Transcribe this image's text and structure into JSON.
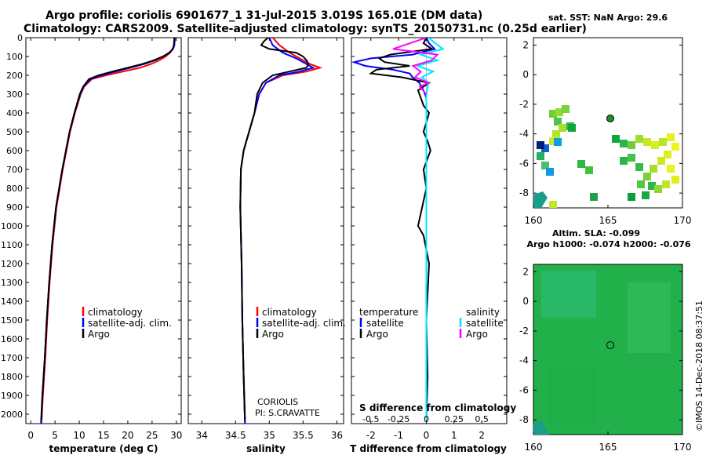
{
  "header": {
    "title_line1": "Argo profile: coriolis 6901677_1 31-Jul-2015 3.019S 165.01E (DM data)",
    "title_line2": "Climatology: CARS2009. Satellite-adjusted climatology: synTS_20150731.nc (0.25d earlier)"
  },
  "colors": {
    "climatology": "#ff0000",
    "satellite": "#0000ff",
    "argo": "#000000",
    "sat_salinity": "#00e5ff",
    "argo_salinity": "#ff00ff"
  },
  "maps": {
    "sst_title": "sat. SST: NaN Argo: 29.6",
    "sla_title_1": "Altim. SLA: -0.099",
    "sla_title_2": "Argo h1000: -0.074 h2000: -0.076",
    "location": [
      165.01,
      -3.019
    ],
    "x_ticks": [
      "160",
      "165",
      "170"
    ],
    "y_ticks": [
      "2",
      "0",
      "-2",
      "-4",
      "-6",
      "-8"
    ]
  },
  "footer": {
    "stamp": "©IMOS 14-Dec-2018 08:37:51",
    "credit_1": "CORIOLIS",
    "credit_2": "PI: S.CRAVATTE"
  },
  "chart_data": [
    {
      "type": "line",
      "panel": "temperature",
      "xlabel": "temperature (deg C)",
      "ylabel": "",
      "xlim": [
        -1,
        31
      ],
      "ylim": [
        2050,
        0
      ],
      "x_ticks": [
        0,
        5,
        10,
        15,
        20,
        25,
        30
      ],
      "y_ticks": [
        0,
        100,
        200,
        300,
        400,
        500,
        600,
        700,
        800,
        900,
        1000,
        1100,
        1200,
        1300,
        1400,
        1500,
        1600,
        1700,
        1800,
        1900,
        2000
      ],
      "legend": [
        "climatology",
        "satellite-adj. clim.",
        "Argo"
      ],
      "series": [
        {
          "name": "climatology",
          "depth": [
            0,
            40,
            60,
            80,
            100,
            120,
            140,
            160,
            180,
            200,
            220,
            260,
            300,
            400,
            500,
            700,
            900,
            1100,
            1300,
            1500,
            1700,
            1900,
            2050
          ],
          "values": [
            29.6,
            29.5,
            29.2,
            28.7,
            27.8,
            26.5,
            24.8,
            22.5,
            19.0,
            15.5,
            12.6,
            11.0,
            10.3,
            9.1,
            8.1,
            6.6,
            5.3,
            4.5,
            3.9,
            3.4,
            3.0,
            2.5,
            2.2
          ]
        },
        {
          "name": "satellite-adj. clim.",
          "depth": [
            0,
            40,
            60,
            80,
            100,
            120,
            140,
            160,
            180,
            200,
            220,
            260,
            300,
            400,
            500,
            700,
            900,
            1100,
            1300,
            1500,
            1700,
            1900,
            2050
          ],
          "values": [
            29.7,
            29.6,
            29.3,
            28.5,
            27.3,
            25.6,
            23.4,
            20.5,
            17.5,
            14.5,
            12.3,
            10.9,
            10.2,
            9.0,
            8.0,
            6.5,
            5.2,
            4.4,
            3.8,
            3.3,
            2.9,
            2.4,
            2.1
          ]
        },
        {
          "name": "Argo",
          "depth": [
            0,
            40,
            60,
            80,
            100,
            120,
            140,
            160,
            180,
            200,
            220,
            260,
            300,
            400,
            500,
            700,
            900,
            1100,
            1300,
            1500,
            1700,
            1900,
            2030
          ],
          "values": [
            29.6,
            29.5,
            29.3,
            28.6,
            27.2,
            25.4,
            23.0,
            20.0,
            16.8,
            14.0,
            12.0,
            10.8,
            10.1,
            9.0,
            8.0,
            6.5,
            5.2,
            4.4,
            3.8,
            3.3,
            2.9,
            2.4,
            2.2
          ]
        }
      ]
    },
    {
      "type": "line",
      "panel": "salinity",
      "xlabel": "salinity",
      "ylabel": "",
      "xlim": [
        33.8,
        36.1
      ],
      "ylim": [
        2050,
        0
      ],
      "x_ticks": [
        34,
        34.5,
        35,
        35.5,
        36
      ],
      "legend": [
        "climatology",
        "satellite-adj. clim.",
        "Argo"
      ],
      "series": [
        {
          "name": "climatology",
          "depth": [
            0,
            40,
            80,
            110,
            140,
            160,
            180,
            200,
            240,
            300,
            400,
            500,
            600,
            700,
            900,
            1200,
            1500,
            1800,
            2050
          ],
          "values": [
            35.05,
            35.15,
            35.3,
            35.45,
            35.6,
            35.75,
            35.55,
            35.2,
            34.95,
            34.85,
            34.78,
            34.7,
            34.62,
            34.58,
            34.57,
            34.59,
            34.6,
            34.62,
            34.64
          ]
        },
        {
          "name": "satellite-adj. clim.",
          "depth": [
            0,
            40,
            80,
            110,
            140,
            160,
            180,
            200,
            240,
            300,
            400,
            500,
            600,
            700,
            900,
            1200,
            1500,
            1800,
            2050
          ],
          "values": [
            35.0,
            35.05,
            35.2,
            35.4,
            35.55,
            35.65,
            35.45,
            35.15,
            34.95,
            34.85,
            34.78,
            34.7,
            34.62,
            34.58,
            34.57,
            34.59,
            34.6,
            34.62,
            34.64
          ]
        },
        {
          "name": "Argo",
          "depth": [
            0,
            20,
            40,
            60,
            80,
            100,
            120,
            140,
            160,
            180,
            200,
            240,
            300,
            400,
            500,
            600,
            700,
            900,
            1200,
            1500,
            1800,
            2030
          ],
          "values": [
            34.98,
            34.92,
            34.88,
            35.0,
            35.4,
            35.5,
            35.55,
            35.58,
            35.55,
            35.3,
            35.05,
            34.9,
            34.82,
            34.78,
            34.7,
            34.62,
            34.58,
            34.57,
            34.59,
            34.6,
            34.62,
            34.64
          ]
        }
      ]
    },
    {
      "type": "line",
      "panel": "differences",
      "xlabel": "T difference from climatology",
      "secondary_xlabel": "S difference from climatology",
      "xlim": [
        -2.7,
        2.9
      ],
      "ylim": [
        2050,
        0
      ],
      "x_ticks": [
        -2,
        -1,
        0,
        1,
        2
      ],
      "s_ticks": [
        "-0.5",
        "-0.25",
        "0",
        "0.25",
        "0.5"
      ],
      "legend_left_title": "temperature",
      "legend_right_title": "salinity",
      "legend": [
        "satellite",
        "Argo",
        "satellite",
        "Argo"
      ],
      "series": [
        {
          "name": "satellite",
          "variable": "temperature",
          "depth": [
            0,
            30,
            60,
            90,
            110,
            130,
            150,
            170,
            190,
            210,
            240,
            280,
            320,
            400,
            500,
            700,
            900,
            1200,
            1500,
            1800,
            2030
          ],
          "values": [
            0.0,
            0.1,
            0.3,
            -0.5,
            -2.0,
            -2.6,
            -2.2,
            -1.2,
            -0.6,
            -0.5,
            -0.25,
            -0.1,
            0.0,
            0.0,
            0.0,
            0.0,
            0.0,
            0.0,
            0.0,
            0.0,
            0.0
          ]
        },
        {
          "name": "Argo",
          "variable": "temperature",
          "depth": [
            0,
            30,
            60,
            90,
            110,
            130,
            150,
            170,
            190,
            210,
            240,
            280,
            320,
            360,
            400,
            450,
            500,
            550,
            600,
            700,
            800,
            900,
            1000,
            1050,
            1200,
            1500,
            1800,
            2030
          ],
          "values": [
            0.0,
            -0.1,
            0.2,
            -1.3,
            -1.7,
            -1.5,
            -0.6,
            -1.8,
            -2.0,
            -0.9,
            0.1,
            -0.3,
            -0.2,
            -0.1,
            0.1,
            0.0,
            -0.1,
            0.05,
            0.15,
            -0.1,
            0.0,
            -0.15,
            -0.3,
            -0.1,
            0.1,
            0.0,
            0.05,
            0.0
          ]
        },
        {
          "name": "satellite",
          "variable": "salinity",
          "depth": [
            0,
            30,
            60,
            90,
            120,
            150,
            180,
            210,
            240,
            300,
            400,
            600,
            800,
            1000,
            1500,
            2030
          ],
          "values": [
            0.02,
            0.08,
            0.15,
            -0.05,
            0.1,
            -0.08,
            0.06,
            -0.04,
            0.02,
            0.0,
            0.0,
            0.0,
            0.0,
            0.0,
            0.0,
            0.0
          ]
        },
        {
          "name": "Argo",
          "variable": "salinity",
          "depth": [
            0,
            30,
            60,
            90,
            120,
            150,
            180,
            210,
            240,
            260,
            300
          ],
          "values": [
            0.0,
            -0.15,
            -0.3,
            0.1,
            0.05,
            -0.12,
            -0.05,
            -0.1,
            0.02,
            -0.06,
            0.0
          ]
        }
      ]
    }
  ]
}
